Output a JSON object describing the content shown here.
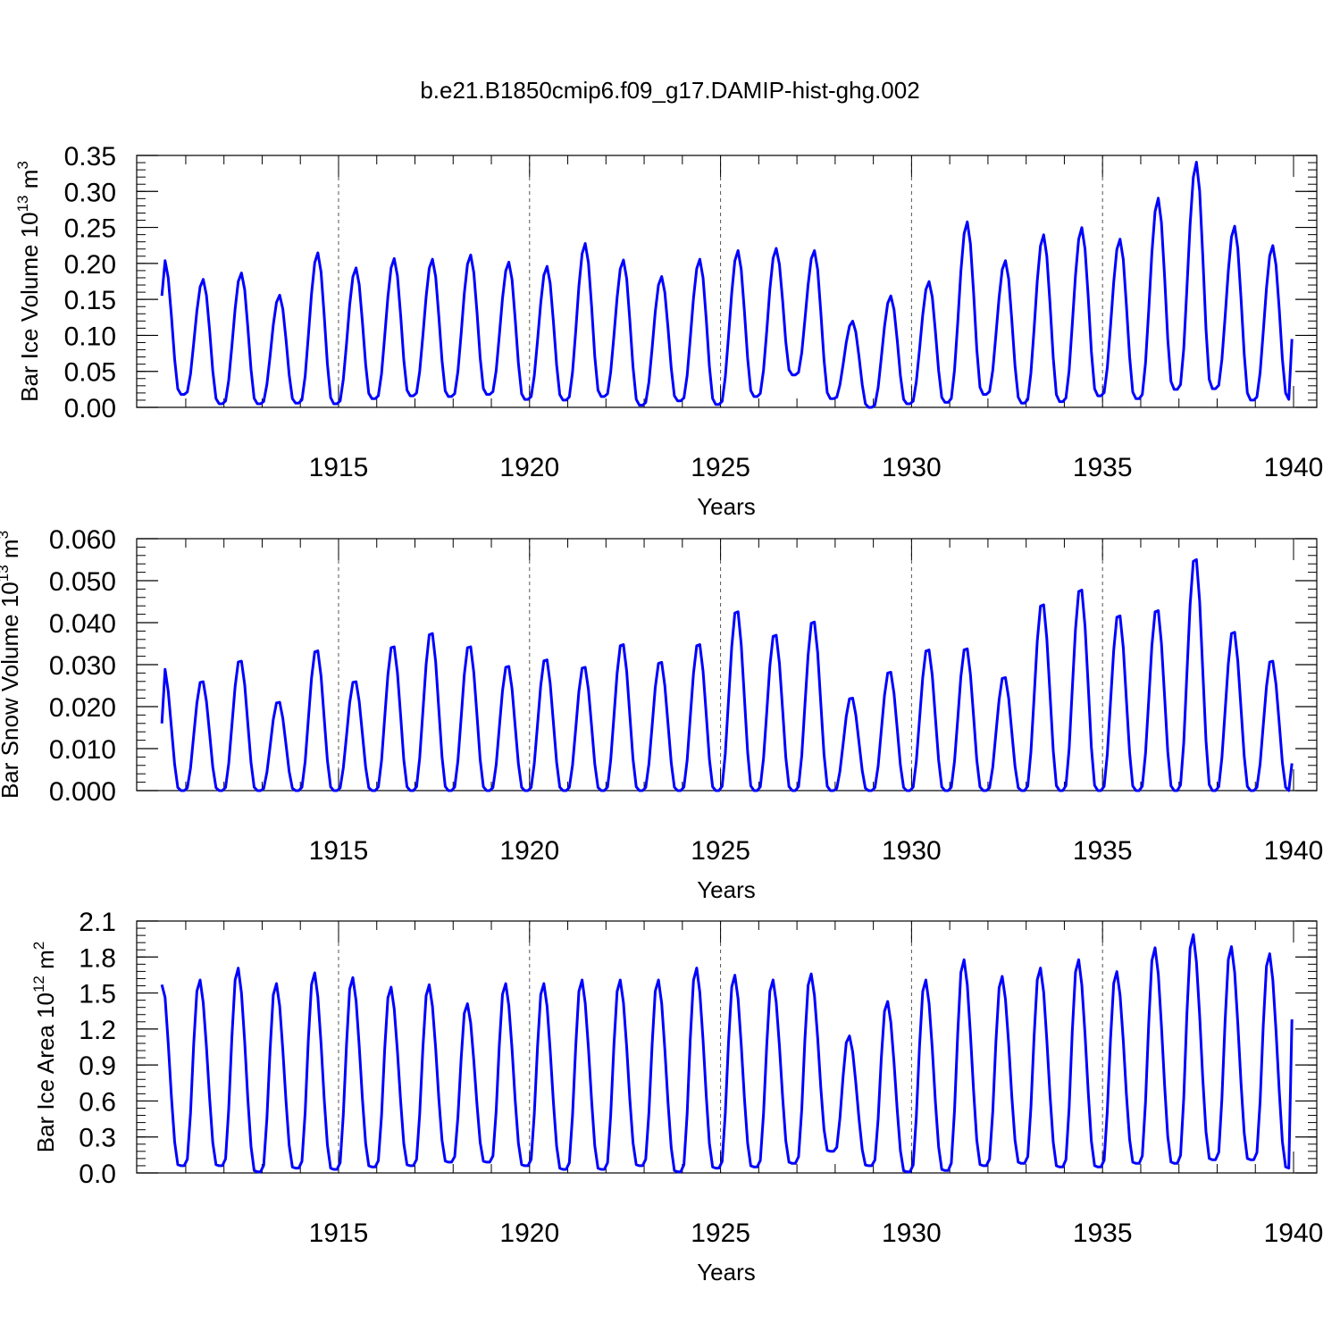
{
  "page": {
    "title": "b.e21.B1850cmip6.f09_g17.DAMIP-hist-ghg.002"
  },
  "chart_data": [
    {
      "type": "line",
      "name": "ice-volume",
      "ylabel": "Bar Ice Volume 10",
      "ylabel_exp": "13",
      "ylabel_unit": "m",
      "ylabel_unit_exp": "3",
      "xlabel": "Years",
      "xlim": [
        1910.3,
        1940.0
      ],
      "ylim": [
        0.0,
        0.35
      ],
      "x_ticks": [
        1915,
        1920,
        1925,
        1930,
        1935,
        1940
      ],
      "x_tick_labels": [
        "1915",
        "1920",
        "1925",
        "1930",
        "1935",
        "1940"
      ],
      "y_ticks": [
        0.0,
        0.05,
        0.1,
        0.15,
        0.2,
        0.25,
        0.3,
        0.35
      ],
      "y_tick_labels": [
        "0.00",
        "0.05",
        "0.10",
        "0.15",
        "0.20",
        "0.25",
        "0.30",
        "0.35"
      ],
      "minor_y_step": 0.01,
      "grid": "dashed vertical lines at labeled years",
      "line_color": "#0000ff",
      "start_year": 1910.0,
      "peak_phase": 0.45,
      "peaks": [
        0.204,
        0.178,
        0.187,
        0.156,
        0.215,
        0.194,
        0.207,
        0.206,
        0.212,
        0.202,
        0.196,
        0.228,
        0.205,
        0.182,
        0.206,
        0.218,
        0.221,
        0.218,
        0.12,
        0.155,
        0.175,
        0.258,
        0.204,
        0.24,
        0.25,
        0.234,
        0.291,
        0.341,
        0.252,
        0.225
      ],
      "troughs": [
        0.018,
        0.005,
        0.005,
        0.006,
        0.005,
        0.012,
        0.016,
        0.015,
        0.018,
        0.011,
        0.01,
        0.015,
        0.003,
        0.009,
        0.004,
        0.015,
        0.045,
        0.012,
        0.0,
        0.005,
        0.007,
        0.018,
        0.006,
        0.008,
        0.016,
        0.012,
        0.025,
        0.026,
        0.01,
        0.011
      ],
      "series": [
        {
          "name": "Bar Ice Volume",
          "start_value": 0.155,
          "end_value": 0.095
        }
      ]
    },
    {
      "type": "line",
      "name": "snow-volume",
      "ylabel": "Bar Snow Volume 10",
      "ylabel_exp": "13",
      "ylabel_unit": "m",
      "ylabel_unit_exp": "3",
      "xlabel": "Years",
      "xlim": [
        1910.3,
        1940.0
      ],
      "ylim": [
        0.0,
        0.06
      ],
      "x_ticks": [
        1915,
        1920,
        1925,
        1930,
        1935,
        1940
      ],
      "x_tick_labels": [
        "1915",
        "1920",
        "1925",
        "1930",
        "1935",
        "1940"
      ],
      "y_ticks": [
        0.0,
        0.01,
        0.02,
        0.03,
        0.04,
        0.05,
        0.06
      ],
      "y_tick_labels": [
        "0.000",
        "0.010",
        "0.020",
        "0.030",
        "0.040",
        "0.050",
        "0.060"
      ],
      "minor_y_step": 0.002,
      "grid": "dashed vertical lines at labeled years",
      "line_color": "#0000ff",
      "start_year": 1910.0,
      "peak_phase": 0.42,
      "peaks": [
        0.0295,
        0.0265,
        0.0315,
        0.0215,
        0.034,
        0.0265,
        0.035,
        0.0382,
        0.035,
        0.0302,
        0.0318,
        0.03,
        0.0355,
        0.0312,
        0.0355,
        0.0435,
        0.0378,
        0.041,
        0.0225,
        0.0288,
        0.0342,
        0.0345,
        0.0275,
        0.0452,
        0.0488,
        0.0425,
        0.0438,
        0.0562,
        0.0385,
        0.0315
      ],
      "troughs": [
        0.0,
        0.0,
        0.0,
        0.0,
        0.0,
        0.0,
        0.0,
        0.0,
        0.0,
        0.0,
        0.0,
        0.0,
        0.0,
        0.0,
        0.0,
        0.0,
        0.0,
        0.0,
        0.0,
        0.0,
        0.0,
        0.0,
        0.0,
        0.0,
        0.0,
        0.0,
        0.0,
        0.0,
        0.0,
        0.0
      ],
      "series": [
        {
          "name": "Bar Snow Volume",
          "start_value": 0.016,
          "end_value": 0.0065
        }
      ]
    },
    {
      "type": "line",
      "name": "ice-area",
      "ylabel": "Bar Ice Area 10",
      "ylabel_exp": "12",
      "ylabel_unit": "m",
      "ylabel_unit_exp": "2",
      "xlabel": "Years",
      "xlim": [
        1910.3,
        1940.0
      ],
      "ylim": [
        0.0,
        2.1
      ],
      "x_ticks": [
        1915,
        1920,
        1925,
        1930,
        1935,
        1940
      ],
      "x_tick_labels": [
        "1915",
        "1920",
        "1925",
        "1930",
        "1935",
        "1940"
      ],
      "y_ticks": [
        0.0,
        0.3,
        0.6,
        0.9,
        1.2,
        1.5,
        1.8,
        2.1
      ],
      "y_tick_labels": [
        "0.0",
        "0.3",
        "0.6",
        "0.9",
        "1.2",
        "1.5",
        "1.8",
        "2.1"
      ],
      "minor_y_step": 0.06,
      "grid": "dashed vertical lines at labeled years",
      "line_color": "#0000ff",
      "start_year": 1910.0,
      "peak_phase": 0.35,
      "peaks": [
        1.67,
        1.62,
        1.72,
        1.59,
        1.68,
        1.64,
        1.56,
        1.58,
        1.42,
        1.59,
        1.59,
        1.62,
        1.62,
        1.62,
        1.72,
        1.66,
        1.62,
        1.67,
        1.15,
        1.44,
        1.62,
        1.79,
        1.65,
        1.72,
        1.79,
        1.69,
        1.89,
        2.0,
        1.9,
        1.84
      ],
      "troughs": [
        0.06,
        0.06,
        0.01,
        0.04,
        0.03,
        0.05,
        0.06,
        0.09,
        0.09,
        0.06,
        0.03,
        0.03,
        0.06,
        0.01,
        0.04,
        0.05,
        0.08,
        0.18,
        0.06,
        0.01,
        0.02,
        0.06,
        0.08,
        0.05,
        0.05,
        0.08,
        0.08,
        0.11,
        0.11,
        0.04
      ],
      "series": [
        {
          "name": "Bar Ice Area",
          "start_value": 1.57,
          "end_value": 1.28
        }
      ]
    }
  ]
}
